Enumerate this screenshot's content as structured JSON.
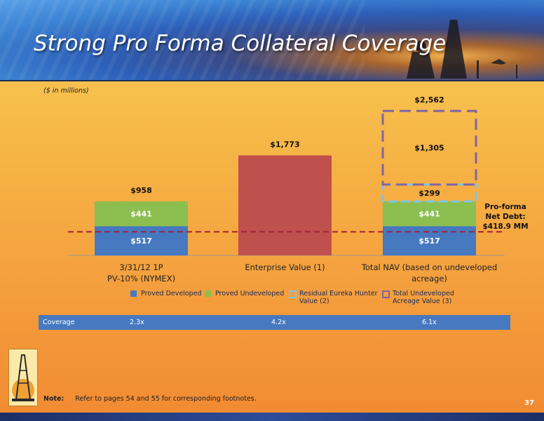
{
  "header": {
    "title": "Strong Pro Forma Collateral Coverage"
  },
  "units_label": "($ in millions)",
  "chart_data": {
    "type": "bar",
    "categories": [
      "3/31/12 1P PV-10% (NYMEX)",
      "Enterprise Value (1)",
      "Total NAV (based on undeveloped acreage)"
    ],
    "category_lines": [
      [
        "3/31/12 1P",
        "PV-10% (NYMEX)"
      ],
      [
        "Enterprise Value (1)"
      ],
      [
        "Total NAV (based on undeveloped",
        "acreage)"
      ]
    ],
    "series": [
      {
        "name": "Proved Developed",
        "values": [
          517,
          null,
          517
        ],
        "labels": [
          "$517",
          "",
          "$517"
        ]
      },
      {
        "name": "Proved Undeveloped",
        "values": [
          441,
          null,
          441
        ],
        "labels": [
          "$441",
          "",
          "$441"
        ]
      },
      {
        "name": "Enterprise Value",
        "values": [
          null,
          1773,
          null
        ],
        "labels": [
          "",
          "",
          ""
        ]
      },
      {
        "name": "Residual Eureka Hunter Value (2)",
        "values": [
          null,
          null,
          299
        ],
        "labels": [
          "",
          "",
          "$299"
        ]
      },
      {
        "name": "Total Undeveloped Acreage Value (3)",
        "values": [
          null,
          null,
          1305
        ],
        "labels": [
          "",
          "",
          "$1,305"
        ]
      }
    ],
    "totals": [
      "$958",
      "$1,773",
      "$2,562"
    ],
    "reference_line": {
      "value": 418.9,
      "label_lines": [
        "Pro-forma",
        "Net Debt:",
        "$418.9 MM"
      ]
    },
    "ylim": [
      0,
      2900
    ],
    "colors": {
      "proved_developed": "#4679c0",
      "proved_undeveloped": "#8cbf4f",
      "enterprise": "#c0504d",
      "eureka_border": "#7ec4e6",
      "acreage_border": "#8064a2",
      "debt_line": "#a0203a"
    }
  },
  "legend": [
    {
      "label_lines": [
        "Proved Developed"
      ],
      "marker": "solid",
      "color": "#4679c0"
    },
    {
      "label_lines": [
        "Proved Undeveloped"
      ],
      "marker": "solid",
      "color": "#8cbf4f"
    },
    {
      "label_lines": [
        "Residual Eureka Hunter",
        "Value (2)"
      ],
      "marker": "dashed",
      "color": "#7ec4e6"
    },
    {
      "label_lines": [
        "Total Undeveloped",
        "Acreage Value (3)"
      ],
      "marker": "dashed",
      "color": "#8064a2"
    }
  ],
  "coverage": {
    "label": "Coverage",
    "values": [
      "2.3x",
      "4.2x",
      "6.1x"
    ]
  },
  "footer": {
    "note_label": "Note:",
    "note_text": "Refer to pages 54 and 55 for corresponding footnotes.",
    "page_number": "37"
  }
}
